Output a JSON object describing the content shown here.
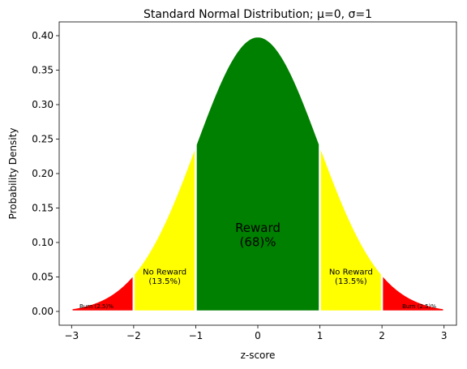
{
  "chart_data": {
    "type": "area",
    "title": "Standard Normal Distribution; μ=0, σ=1",
    "xlabel": "z-score",
    "ylabel": "Probability Density",
    "xlim": [
      -3.2,
      3.2
    ],
    "ylim": [
      -0.02,
      0.42
    ],
    "grid": false,
    "legend": "none",
    "x_ticks": [
      -3,
      -2,
      -1,
      0,
      1,
      2,
      3
    ],
    "x_tick_labels": [
      "−3",
      "−2",
      "−1",
      "0",
      "1",
      "2",
      "3"
    ],
    "y_ticks": [
      0.0,
      0.05,
      0.1,
      0.15,
      0.2,
      0.25,
      0.3,
      0.35,
      0.4
    ],
    "y_tick_labels": [
      "0.00",
      "0.05",
      "0.10",
      "0.15",
      "0.20",
      "0.25",
      "0.30",
      "0.35",
      "0.40"
    ],
    "distribution": {
      "mean": 0,
      "sd": 1
    },
    "regions": [
      {
        "from": -3,
        "to": -2,
        "color": "#ff0000",
        "label_lines": [
          "Burn (2.5)%"
        ],
        "label_size": "small",
        "label_x": -2.6,
        "label_y": 0.005
      },
      {
        "from": -2,
        "to": -1,
        "color": "#ffff00",
        "label_lines": [
          "No Reward",
          "(13.5%)"
        ],
        "label_size": "medium",
        "label_x": -1.5,
        "label_y": 0.04
      },
      {
        "from": -1,
        "to": 1,
        "color": "#008000",
        "label_lines": [
          "Reward",
          "(68)%"
        ],
        "label_size": "large",
        "label_x": 0,
        "label_y": 0.095
      },
      {
        "from": 1,
        "to": 2,
        "color": "#ffff00",
        "label_lines": [
          "No Reward",
          "(13.5%)"
        ],
        "label_size": "medium",
        "label_x": 1.5,
        "label_y": 0.04
      },
      {
        "from": 2,
        "to": 3,
        "color": "#ff0000",
        "label_lines": [
          "Burn (2.5)%"
        ],
        "label_size": "small",
        "label_x": 2.6,
        "label_y": 0.005
      }
    ]
  }
}
